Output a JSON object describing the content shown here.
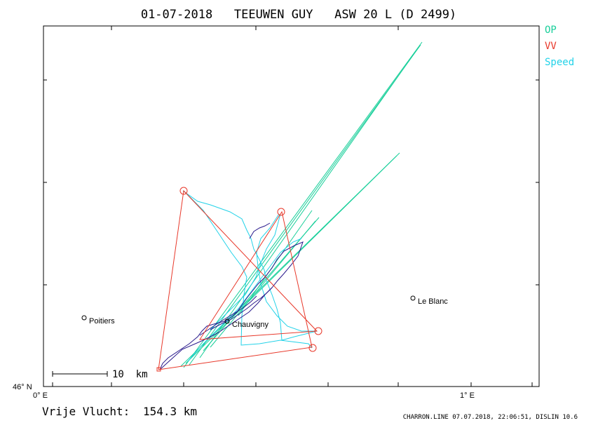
{
  "title": "01-07-2018   TEEUWEN GUY   ASW 20 L (D 2499)",
  "legend": [
    {
      "label": "OP",
      "color": "#19cf9a"
    },
    {
      "label": "VV",
      "color": "#e8382a"
    },
    {
      "label": "Speed",
      "color": "#22d2e8"
    }
  ],
  "axes": {
    "lat_label": "46° N",
    "lon_labels": [
      "0° E",
      "1° E"
    ]
  },
  "towns": [
    {
      "name": "Poitiers"
    },
    {
      "name": "Chauvigny"
    },
    {
      "name": "Le Blanc"
    }
  ],
  "scale_bar": {
    "label": "10  km"
  },
  "distance": {
    "label": "Vrije Vlucht:",
    "value": "154.3 km"
  },
  "footer": "CHARRON.LINE 07.07.2018, 22:06:51, DISLIN 10.6",
  "colors": {
    "op": "#19cf9a",
    "vv": "#e8382a",
    "speed": "#22d2e8",
    "track": "#2a1a8c",
    "frame": "#000000"
  }
}
